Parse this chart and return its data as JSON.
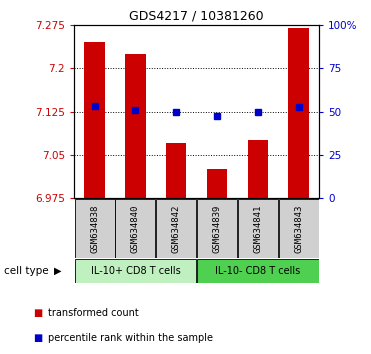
{
  "title": "GDS4217 / 10381260",
  "samples": [
    "GSM634838",
    "GSM634840",
    "GSM634842",
    "GSM634839",
    "GSM634841",
    "GSM634843"
  ],
  "bar_values": [
    7.245,
    7.225,
    7.07,
    7.025,
    7.075,
    7.27
  ],
  "dot_values": [
    7.135,
    7.128,
    7.125,
    7.118,
    7.124,
    7.132
  ],
  "bar_color": "#cc0000",
  "dot_color": "#0000cc",
  "ymin": 6.975,
  "ymax": 7.275,
  "yticks": [
    6.975,
    7.05,
    7.125,
    7.2,
    7.275
  ],
  "ytick_labels": [
    "6.975",
    "7.05",
    "7.125",
    "7.2",
    "7.275"
  ],
  "right_yticks": [
    0,
    25,
    50,
    75,
    100
  ],
  "right_ytick_labels": [
    "0",
    "25",
    "50",
    "75",
    "100%"
  ],
  "group1_label": "IL-10+ CD8 T cells",
  "group2_label": "IL-10- CD8 T cells",
  "group1_color": "#c0f0c0",
  "group2_color": "#50d050",
  "sample_box_color": "#d0d0d0",
  "cell_type_label": "cell type",
  "legend_red": "transformed count",
  "legend_blue": "percentile rank within the sample",
  "bg_color": "#ffffff"
}
